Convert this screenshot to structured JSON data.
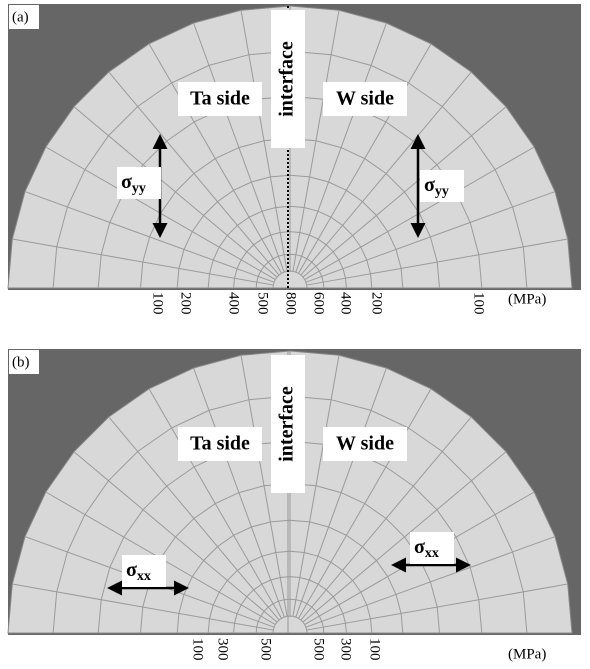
{
  "panels": [
    {
      "label": "(a)",
      "left_text": "Ta side",
      "right_text": "W side",
      "interface": "interface",
      "stress": {
        "symbol": "σ",
        "subscript": "yy"
      },
      "scale": [
        "100",
        "200",
        "400",
        "500",
        "800",
        "600",
        "400",
        "200",
        "100"
      ],
      "unit": "(MPa)"
    },
    {
      "label": "(b)",
      "left_text": "Ta side",
      "right_text": "W side",
      "interface": "interface",
      "stress": {
        "symbol": "σ",
        "subscript": "xx"
      },
      "scale": [
        "100",
        "300",
        "500",
        "500",
        "300",
        "100"
      ],
      "unit": "(MPa)"
    }
  ]
}
